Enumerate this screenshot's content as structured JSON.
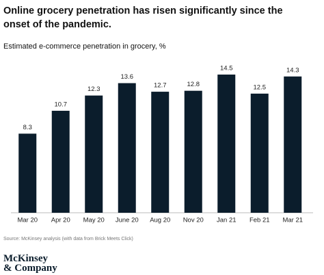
{
  "chart_data": {
    "type": "bar",
    "title": "Online grocery penetration has risen significantly since the onset of the pandemic.",
    "subtitle": "Estimated e-commerce penetration in grocery, %",
    "categories": [
      "Mar 20",
      "Apr 20",
      "May 20",
      "June 20",
      "Aug 20",
      "Nov 20",
      "Jan 21",
      "Feb 21",
      "Mar 21"
    ],
    "values": [
      8.3,
      10.7,
      12.3,
      13.6,
      12.7,
      12.8,
      14.5,
      12.5,
      14.3
    ],
    "color": "#0b1d2c",
    "source": "Source: McKinsey analysis (with data from Brick Meets Click)",
    "logo": [
      "McKinsey",
      "& Company"
    ]
  }
}
